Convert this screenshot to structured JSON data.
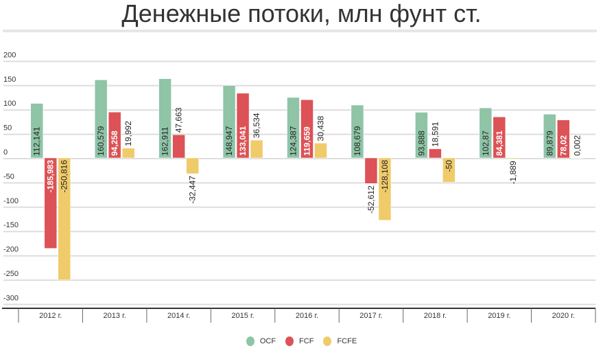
{
  "chart_data": {
    "type": "bar",
    "title": "Денежные потоки, млн фунт ст.",
    "xlabel": "",
    "ylabel": "",
    "ylim": [
      -300,
      200
    ],
    "yticks": [
      "200",
      "150",
      "100",
      "50",
      "0",
      "-50",
      "-100",
      "-150",
      "-200",
      "-250",
      "-300"
    ],
    "ytick_values": [
      200,
      150,
      100,
      50,
      0,
      -50,
      -100,
      -150,
      -200,
      -250,
      -300
    ],
    "categories": [
      "2012 г.",
      "2013 г.",
      "2014 г.",
      "2015 г.",
      "2016 г.",
      "2017 г.",
      "2018 г.",
      "2019 г.",
      "2020 г."
    ],
    "grid": true,
    "legend_position": "bottom",
    "series": [
      {
        "name": "OCF",
        "color": "#8fc4a7",
        "label_color": "#222",
        "values": [
          112.141,
          160.579,
          162.911,
          148.947,
          124.387,
          108.679,
          93.888,
          102.87,
          89.879
        ],
        "labels": [
          "112,141",
          "160,579",
          "162,911",
          "148,947",
          "124,387",
          "108,679",
          "93,888",
          "102,87",
          "89,879"
        ]
      },
      {
        "name": "FCF",
        "color": "#dc5256",
        "label_color": "#fff",
        "values": [
          -185.983,
          94.258,
          47.663,
          133.041,
          119.659,
          -52.612,
          18.591,
          84.381,
          78.02
        ],
        "labels": [
          "-185,983",
          "94,258",
          "47,663",
          "133,041",
          "119,659",
          "-52,612",
          "18,591",
          "84,381",
          "78,02"
        ]
      },
      {
        "name": "FCFE",
        "color": "#efcb6a",
        "label_color": "#222",
        "values": [
          -250.816,
          19.992,
          -32.447,
          36.534,
          30.438,
          -128.108,
          -50,
          -1.889,
          0.002
        ],
        "labels": [
          "-250,816",
          "19,992",
          "-32,447",
          "36,534",
          "30,438",
          "-128,108",
          "-50",
          "-1,889",
          "0,002"
        ]
      }
    ]
  }
}
